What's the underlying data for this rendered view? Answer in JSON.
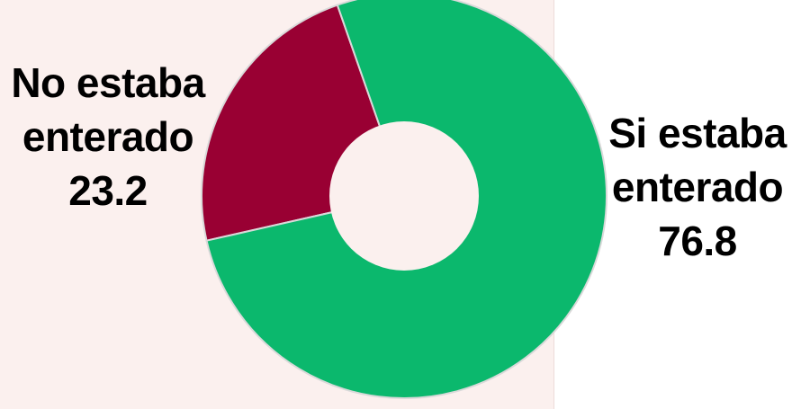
{
  "chart_data": {
    "type": "pie",
    "donut": true,
    "categories": [
      "No estaba enterado",
      "Si estaba enterado"
    ],
    "values": [
      23.2,
      76.8
    ],
    "colors": [
      "#990033",
      "#0bb86d"
    ],
    "slice_labels": [
      {
        "line1": "No estaba",
        "line2": "enterado",
        "value": "23.2"
      },
      {
        "line1": "Si estaba",
        "line2": "enterado",
        "value": "76.8"
      }
    ],
    "title": "",
    "legend": "none"
  }
}
